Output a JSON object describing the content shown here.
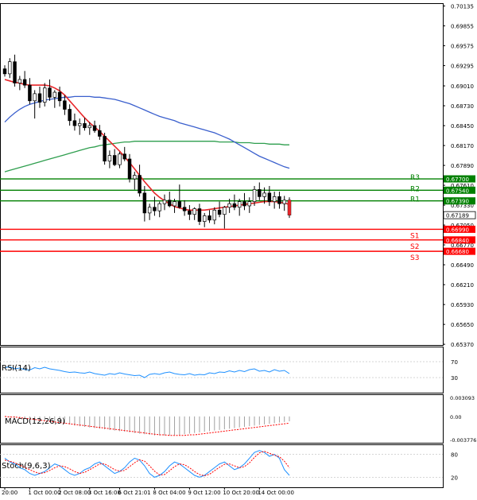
{
  "chart_data": {
    "type": "candlestick",
    "instrument_panel": {
      "price_ticks": [
        "0.70135",
        "0.69855",
        "0.69575",
        "0.69295",
        "0.69010",
        "0.68730",
        "0.68450",
        "0.68170",
        "0.67890",
        "0.67610",
        "0.67330",
        "0.67050",
        "0.66770",
        "0.66490",
        "0.66210",
        "0.65930",
        "0.65650",
        "0.65370"
      ],
      "price_tick_values": [
        0.70135,
        0.69855,
        0.69575,
        0.69295,
        0.6901,
        0.6873,
        0.6845,
        0.6817,
        0.6789,
        0.6761,
        0.6733,
        0.6705,
        0.6677,
        0.6649,
        0.6621,
        0.6593,
        0.6565,
        0.6537
      ],
      "current_price": "0.67189",
      "current_price_value": 0.67189,
      "candles": [
        [
          0.6925,
          0.693,
          0.6914,
          0.6918
        ],
        [
          0.6918,
          0.694,
          0.6912,
          0.6935
        ],
        [
          0.6935,
          0.6945,
          0.69,
          0.6905
        ],
        [
          0.6905,
          0.6915,
          0.6895,
          0.691
        ],
        [
          0.691,
          0.6922,
          0.6898,
          0.6902
        ],
        [
          0.6902,
          0.6912,
          0.6875,
          0.688
        ],
        [
          0.688,
          0.6895,
          0.6855,
          0.689
        ],
        [
          0.689,
          0.69,
          0.687,
          0.6878
        ],
        [
          0.6878,
          0.6905,
          0.6872,
          0.6898
        ],
        [
          0.6898,
          0.691,
          0.688,
          0.6885
        ],
        [
          0.6885,
          0.6895,
          0.687,
          0.6892
        ],
        [
          0.6892,
          0.69,
          0.6872,
          0.688
        ],
        [
          0.688,
          0.6888,
          0.686,
          0.6868
        ],
        [
          0.6868,
          0.6875,
          0.6845,
          0.6852
        ],
        [
          0.6852,
          0.6862,
          0.6838,
          0.6845
        ],
        [
          0.6845,
          0.6855,
          0.6832,
          0.6848
        ],
        [
          0.6848,
          0.6856,
          0.6838,
          0.6842
        ],
        [
          0.6842,
          0.685,
          0.6832,
          0.6845
        ],
        [
          0.6845,
          0.6852,
          0.6835,
          0.6838
        ],
        [
          0.6838,
          0.6846,
          0.6825,
          0.683
        ],
        [
          0.683,
          0.6835,
          0.679,
          0.6795
        ],
        [
          0.6795,
          0.681,
          0.6785,
          0.6803
        ],
        [
          0.6803,
          0.6812,
          0.6788,
          0.679
        ],
        [
          0.679,
          0.6808,
          0.6785,
          0.6805
        ],
        [
          0.6805,
          0.6815,
          0.6795,
          0.6798
        ],
        [
          0.6798,
          0.6805,
          0.6765,
          0.677
        ],
        [
          0.677,
          0.678,
          0.6755,
          0.6775
        ],
        [
          0.6775,
          0.679,
          0.6745,
          0.675
        ],
        [
          0.675,
          0.676,
          0.671,
          0.6722
        ],
        [
          0.6722,
          0.6735,
          0.6712,
          0.673
        ],
        [
          0.673,
          0.6745,
          0.6718,
          0.6725
        ],
        [
          0.6725,
          0.6738,
          0.6716,
          0.6735
        ],
        [
          0.6735,
          0.6748,
          0.6726,
          0.674
        ],
        [
          0.674,
          0.6752,
          0.673,
          0.6732
        ],
        [
          0.6732,
          0.6742,
          0.6722,
          0.6738
        ],
        [
          0.6738,
          0.6762,
          0.6728,
          0.673
        ],
        [
          0.673,
          0.674,
          0.6718,
          0.6725
        ],
        [
          0.6725,
          0.6733,
          0.6712,
          0.672
        ],
        [
          0.672,
          0.673,
          0.6712,
          0.6728
        ],
        [
          0.6728,
          0.6735,
          0.6705,
          0.671
        ],
        [
          0.671,
          0.6722,
          0.6702,
          0.6718
        ],
        [
          0.6718,
          0.6726,
          0.6708,
          0.6712
        ],
        [
          0.6712,
          0.673,
          0.6706,
          0.6726
        ],
        [
          0.6726,
          0.6738,
          0.6716,
          0.672
        ],
        [
          0.672,
          0.6732,
          0.67,
          0.673
        ],
        [
          0.673,
          0.6742,
          0.6722,
          0.6735
        ],
        [
          0.6735,
          0.6748,
          0.6726,
          0.673
        ],
        [
          0.673,
          0.6742,
          0.6718,
          0.6738
        ],
        [
          0.6738,
          0.675,
          0.6726,
          0.6732
        ],
        [
          0.6732,
          0.6744,
          0.6722,
          0.6738
        ],
        [
          0.6738,
          0.676,
          0.6732,
          0.6755
        ],
        [
          0.6755,
          0.6765,
          0.674,
          0.6745
        ],
        [
          0.6745,
          0.6758,
          0.6735,
          0.675
        ],
        [
          0.675,
          0.676,
          0.6732,
          0.6738
        ],
        [
          0.6738,
          0.6752,
          0.6728,
          0.6745
        ],
        [
          0.6745,
          0.6752,
          0.6728,
          0.6735
        ],
        [
          0.6735,
          0.6746,
          0.6725,
          0.674
        ],
        [
          0.674,
          0.6744,
          0.6715,
          0.6719
        ]
      ],
      "ma_fast": [
        0.691,
        0.6908,
        0.6906,
        0.6905,
        0.6903,
        0.6902,
        0.6902,
        0.6902,
        0.6902,
        0.6901,
        0.6898,
        0.6894,
        0.6888,
        0.688,
        0.6872,
        0.6864,
        0.6856,
        0.6849,
        0.6843,
        0.6837,
        0.683,
        0.6823,
        0.6816,
        0.6809,
        0.6801,
        0.6793,
        0.6784,
        0.6775,
        0.6766,
        0.6758,
        0.675,
        0.6744,
        0.6739,
        0.6735,
        0.6731,
        0.6729,
        0.6727,
        0.6726,
        0.6726,
        0.6726,
        0.6726,
        0.6727,
        0.6728,
        0.6729,
        0.673,
        0.6731,
        0.6732,
        0.6733,
        0.6734,
        0.6735,
        0.6736,
        0.6737,
        0.6738,
        0.6738,
        0.6738,
        0.6737,
        0.6736,
        0.6734
      ],
      "ma_slow": [
        0.685,
        0.6857,
        0.6863,
        0.6868,
        0.6872,
        0.6875,
        0.6877,
        0.6879,
        0.6881,
        0.6882,
        0.6883,
        0.6884,
        0.6885,
        0.6885,
        0.6886,
        0.6886,
        0.6886,
        0.6886,
        0.6885,
        0.6885,
        0.6884,
        0.6883,
        0.6882,
        0.688,
        0.6878,
        0.6876,
        0.6873,
        0.687,
        0.6867,
        0.6864,
        0.6861,
        0.6858,
        0.6856,
        0.6854,
        0.6852,
        0.6849,
        0.6847,
        0.6845,
        0.6843,
        0.6841,
        0.6839,
        0.6837,
        0.6835,
        0.6832,
        0.6829,
        0.6826,
        0.6822,
        0.6818,
        0.6814,
        0.681,
        0.6806,
        0.6802,
        0.6799,
        0.6796,
        0.6793,
        0.679,
        0.6787,
        0.6785
      ],
      "ma_long": [
        0.678,
        0.6782,
        0.6784,
        0.6786,
        0.6788,
        0.679,
        0.6792,
        0.6794,
        0.6796,
        0.6798,
        0.68,
        0.6802,
        0.6804,
        0.6806,
        0.6808,
        0.681,
        0.6812,
        0.6814,
        0.6815,
        0.6817,
        0.6818,
        0.6819,
        0.682,
        0.6821,
        0.6822,
        0.6822,
        0.6823,
        0.6823,
        0.6823,
        0.6823,
        0.6823,
        0.6823,
        0.6823,
        0.6823,
        0.6823,
        0.6823,
        0.6823,
        0.6823,
        0.6823,
        0.6823,
        0.6823,
        0.6823,
        0.6823,
        0.6822,
        0.6822,
        0.6822,
        0.6822,
        0.6821,
        0.6821,
        0.6821,
        0.682,
        0.682,
        0.682,
        0.6819,
        0.6819,
        0.6819,
        0.6818,
        0.6818
      ],
      "levels": [
        {
          "name": "R3",
          "value": 0.677,
          "label": "0.67700",
          "color": "#008000"
        },
        {
          "name": "R2",
          "value": 0.6754,
          "label": "0.67540",
          "color": "#008000"
        },
        {
          "name": "R1",
          "value": 0.6739,
          "label": "0.67390",
          "color": "#008000"
        },
        {
          "name": "S1",
          "value": 0.6699,
          "label": "0.66990",
          "color": "#ff0000"
        },
        {
          "name": "S2",
          "value": 0.6684,
          "label": "0.66840",
          "color": "#ff0000"
        },
        {
          "name": "S3",
          "value": 0.6668,
          "label": "0.66680",
          "color": "#ff0000"
        }
      ]
    },
    "rsi_panel": {
      "label": "RSI(14)",
      "ticks": [
        "70",
        "30"
      ],
      "tick_values": [
        70,
        30
      ],
      "ylim": [
        0,
        100
      ],
      "values": [
        55,
        57,
        52,
        54,
        50,
        49,
        55,
        52,
        56,
        52,
        50,
        48,
        45,
        43,
        44,
        42,
        41,
        44,
        40,
        38,
        36,
        40,
        38,
        42,
        39,
        37,
        35,
        36,
        30,
        38,
        40,
        38,
        42,
        44,
        40,
        38,
        37,
        40,
        36,
        38,
        37,
        42,
        40,
        44,
        43,
        47,
        44,
        48,
        45,
        50,
        52,
        46,
        48,
        44,
        50,
        46,
        48,
        40
      ],
      "color": "#1e90ff"
    },
    "macd_panel": {
      "label": "MACD(12,26,9)",
      "ticks": [
        "0.003093",
        "0.00",
        "-0.003776"
      ],
      "tick_values": [
        0.003093,
        0,
        -0.003776
      ],
      "ylim": [
        -0.003776,
        0.003093
      ],
      "histogram": [
        0.0,
        -0.0001,
        -0.0002,
        -0.0003,
        -0.0004,
        -0.0005,
        -0.0006,
        -0.0007,
        -0.0008,
        -0.0009,
        -0.001,
        -0.0011,
        -0.0012,
        -0.0013,
        -0.0015,
        -0.0016,
        -0.0017,
        -0.0018,
        -0.0019,
        -0.002,
        -0.0021,
        -0.0022,
        -0.0023,
        -0.0024,
        -0.0025,
        -0.0026,
        -0.0027,
        -0.0028,
        -0.0029,
        -0.003,
        -0.0031,
        -0.0031,
        -0.0031,
        -0.0031,
        -0.003,
        -0.003,
        -0.0029,
        -0.0028,
        -0.0027,
        -0.0026,
        -0.0025,
        -0.0024,
        -0.0023,
        -0.0022,
        -0.0021,
        -0.002,
        -0.0019,
        -0.0018,
        -0.0017,
        -0.0016,
        -0.0015,
        -0.0014,
        -0.0013,
        -0.0012,
        -0.0011,
        -0.001,
        -0.0009,
        -0.0008
      ],
      "signal": [
        0.0,
        -0.0001,
        -0.0001,
        -0.0002,
        -0.0003,
        -0.0004,
        -0.0005,
        -0.0006,
        -0.0007,
        -0.0008,
        -0.0009,
        -0.001,
        -0.0011,
        -0.0012,
        -0.0013,
        -0.0014,
        -0.0015,
        -0.0016,
        -0.0017,
        -0.0018,
        -0.0019,
        -0.002,
        -0.0021,
        -0.0022,
        -0.0023,
        -0.0024,
        -0.0025,
        -0.0026,
        -0.0027,
        -0.0028,
        -0.0029,
        -0.003,
        -0.003,
        -0.0031,
        -0.0031,
        -0.0031,
        -0.0031,
        -0.003,
        -0.003,
        -0.0029,
        -0.0028,
        -0.0027,
        -0.0026,
        -0.0025,
        -0.0024,
        -0.0023,
        -0.0022,
        -0.0021,
        -0.002,
        -0.0019,
        -0.0018,
        -0.0017,
        -0.0016,
        -0.0015,
        -0.0014,
        -0.0013,
        -0.0012,
        -0.0011
      ],
      "hist_color": "#a0a0a0",
      "signal_color": "#ff0000"
    },
    "stoch_panel": {
      "label": "Stoch(9,6,3)",
      "ticks": [
        "80",
        "20"
      ],
      "tick_values": [
        80,
        20
      ],
      "ylim": [
        0,
        100
      ],
      "main": [
        70,
        60,
        55,
        45,
        40,
        30,
        25,
        30,
        35,
        45,
        55,
        50,
        40,
        30,
        25,
        30,
        40,
        45,
        55,
        60,
        50,
        40,
        30,
        35,
        45,
        60,
        70,
        65,
        50,
        30,
        20,
        25,
        35,
        50,
        60,
        55,
        45,
        35,
        25,
        20,
        25,
        35,
        45,
        55,
        60,
        50,
        40,
        45,
        55,
        70,
        85,
        90,
        85,
        75,
        80,
        70,
        40,
        25
      ],
      "signal": [
        65,
        62,
        58,
        52,
        46,
        40,
        34,
        30,
        32,
        38,
        45,
        50,
        48,
        42,
        35,
        30,
        33,
        40,
        47,
        55,
        55,
        48,
        40,
        36,
        38,
        48,
        58,
        66,
        62,
        50,
        36,
        26,
        27,
        37,
        48,
        55,
        53,
        45,
        35,
        27,
        24,
        28,
        37,
        46,
        54,
        55,
        50,
        45,
        48,
        58,
        72,
        84,
        88,
        83,
        78,
        74,
        62,
        45
      ],
      "main_color": "#1e90ff",
      "signal_color": "#ff0000"
    },
    "x_ticks": [
      "20:00",
      "1 Oct 00:00",
      "2 Oct 08:00",
      "3 Oct 16:00",
      "6 Oct 21:01",
      "8 Oct 04:00",
      "9 Oct 12:00",
      "10 Oct 20:00",
      "14 Oct 00:00"
    ],
    "x_tick_index": [
      0,
      5,
      11,
      17,
      23,
      30,
      37,
      44,
      51
    ]
  }
}
